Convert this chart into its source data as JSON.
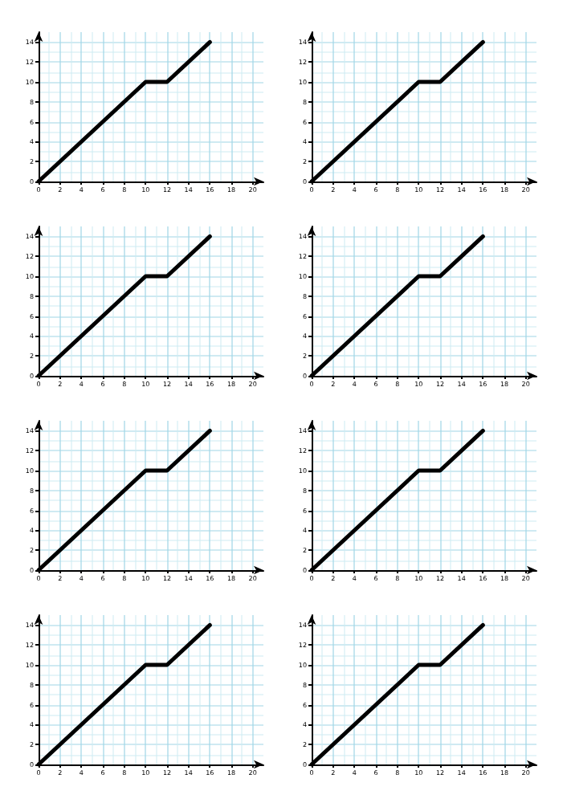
{
  "chart_data": [
    {
      "type": "line",
      "x": [
        0,
        10,
        12,
        16
      ],
      "values": [
        0,
        10,
        10,
        14
      ],
      "color": "#000000",
      "xlim": [
        0,
        21
      ],
      "ylim": [
        0,
        15
      ],
      "xticks": [
        0,
        2,
        4,
        6,
        8,
        10,
        12,
        14,
        16,
        18,
        20
      ],
      "yticks": [
        0,
        2,
        4,
        6,
        8,
        10,
        12,
        14
      ],
      "grid": true,
      "marker": "none",
      "line_style": "solid"
    },
    {
      "type": "line",
      "x": [
        0,
        10,
        12,
        16
      ],
      "values": [
        0,
        10,
        10,
        14
      ],
      "color": "#000000",
      "xlim": [
        0,
        21
      ],
      "ylim": [
        0,
        15
      ],
      "xticks": [
        0,
        2,
        4,
        6,
        8,
        10,
        12,
        14,
        16,
        18,
        20
      ],
      "yticks": [
        0,
        2,
        4,
        6,
        8,
        10,
        12,
        14
      ],
      "grid": true,
      "marker": "none",
      "line_style": "solid"
    },
    {
      "type": "line",
      "x": [
        0,
        10,
        12,
        16
      ],
      "values": [
        0,
        10,
        10,
        14
      ],
      "color": "#000000",
      "xlim": [
        0,
        21
      ],
      "ylim": [
        0,
        15
      ],
      "xticks": [
        0,
        2,
        4,
        6,
        8,
        10,
        12,
        14,
        16,
        18,
        20
      ],
      "yticks": [
        0,
        2,
        4,
        6,
        8,
        10,
        12,
        14
      ],
      "grid": true,
      "marker": "none",
      "line_style": "solid"
    },
    {
      "type": "line",
      "x": [
        0,
        10,
        12,
        16
      ],
      "values": [
        0,
        10,
        10,
        14
      ],
      "color": "#000000",
      "xlim": [
        0,
        21
      ],
      "ylim": [
        0,
        15
      ],
      "xticks": [
        0,
        2,
        4,
        6,
        8,
        10,
        12,
        14,
        16,
        18,
        20
      ],
      "yticks": [
        0,
        2,
        4,
        6,
        8,
        10,
        12,
        14
      ],
      "grid": true,
      "marker": "none",
      "line_style": "solid"
    },
    {
      "type": "line",
      "x": [
        0,
        10,
        12,
        16
      ],
      "values": [
        0,
        10,
        10,
        14
      ],
      "color": "#000000",
      "xlim": [
        0,
        21
      ],
      "ylim": [
        0,
        15
      ],
      "xticks": [
        0,
        2,
        4,
        6,
        8,
        10,
        12,
        14,
        16,
        18,
        20
      ],
      "yticks": [
        0,
        2,
        4,
        6,
        8,
        10,
        12,
        14
      ],
      "grid": true,
      "marker": "none",
      "line_style": "solid"
    },
    {
      "type": "line",
      "x": [
        0,
        10,
        12,
        16
      ],
      "values": [
        0,
        10,
        10,
        14
      ],
      "color": "#000000",
      "xlim": [
        0,
        21
      ],
      "ylim": [
        0,
        15
      ],
      "xticks": [
        0,
        2,
        4,
        6,
        8,
        10,
        12,
        14,
        16,
        18,
        20
      ],
      "yticks": [
        0,
        2,
        4,
        6,
        8,
        10,
        12,
        14
      ],
      "grid": true,
      "marker": "none",
      "line_style": "solid"
    },
    {
      "type": "line",
      "x": [
        0,
        10,
        12,
        16
      ],
      "values": [
        0,
        10,
        10,
        14
      ],
      "color": "#000000",
      "xlim": [
        0,
        21
      ],
      "ylim": [
        0,
        15
      ],
      "xticks": [
        0,
        2,
        4,
        6,
        8,
        10,
        12,
        14,
        16,
        18,
        20
      ],
      "yticks": [
        0,
        2,
        4,
        6,
        8,
        10,
        12,
        14
      ],
      "grid": true,
      "marker": "none",
      "line_style": "solid"
    },
    {
      "type": "line",
      "x": [
        0,
        10,
        12,
        16
      ],
      "values": [
        0,
        10,
        10,
        14
      ],
      "color": "#000000",
      "xlim": [
        0,
        21
      ],
      "ylim": [
        0,
        15
      ],
      "xticks": [
        0,
        2,
        4,
        6,
        8,
        10,
        12,
        14,
        16,
        18,
        20
      ],
      "yticks": [
        0,
        2,
        4,
        6,
        8,
        10,
        12,
        14
      ],
      "grid": true,
      "marker": "none",
      "line_style": "solid"
    }
  ]
}
